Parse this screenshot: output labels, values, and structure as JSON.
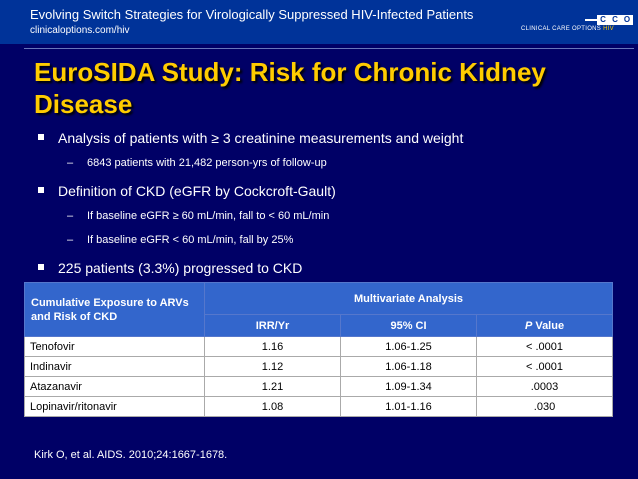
{
  "header": {
    "title": "Evolving Switch Strategies for Virologically Suppressed HIV-Infected Patients",
    "url": "clinicaloptions.com/hiv",
    "logo": {
      "mark_letters": [
        "C",
        "C",
        "O"
      ],
      "text": "CLINICAL CARE OPTIONS",
      "suffix": "HIV"
    }
  },
  "slide": {
    "title": "EuroSIDA Study: Risk for Chronic Kidney Disease",
    "bullets": [
      {
        "text": "Analysis of patients with ≥ 3 creatinine measurements and weight",
        "subs": [
          "6843 patients with 21,482 person-yrs of follow-up"
        ]
      },
      {
        "text": "Definition of CKD (eGFR by Cockcroft-Gault)",
        "subs": [
          "If baseline eGFR ≥ 60 mL/min, fall to < 60 mL/min",
          "If baseline eGFR < 60 mL/min, fall by 25%"
        ]
      },
      {
        "text": "225 patients (3.3%) progressed to CKD",
        "subs": []
      }
    ],
    "sub_dash": "–"
  },
  "table": {
    "row_header": "Cumulative Exposure to ARVs and Risk of CKD",
    "group_header": "Multivariate Analysis",
    "columns": [
      "IRR/Yr",
      "95% CI",
      "P Value"
    ],
    "p_letter": "P",
    "p_rest": " Value",
    "rows": [
      {
        "drug": "Tenofovir",
        "irr": "1.16",
        "ci": "1.06-1.25",
        "p": "< .0001"
      },
      {
        "drug": "Indinavir",
        "irr": "1.12",
        "ci": "1.06-1.18",
        "p": "< .0001"
      },
      {
        "drug": "Atazanavir",
        "irr": "1.21",
        "ci": "1.09-1.34",
        "p": ".0003"
      },
      {
        "drug": "Lopinavir/ritonavir",
        "irr": "1.08",
        "ci": "1.01-1.16",
        "p": ".030"
      }
    ]
  },
  "reference": "Kirk O, et al. AIDS. 2010;24:1667-1678.",
  "colors": {
    "background": "#000066",
    "header_bar": "#003399",
    "title": "#ffcc00",
    "table_header": "#3366cc"
  }
}
